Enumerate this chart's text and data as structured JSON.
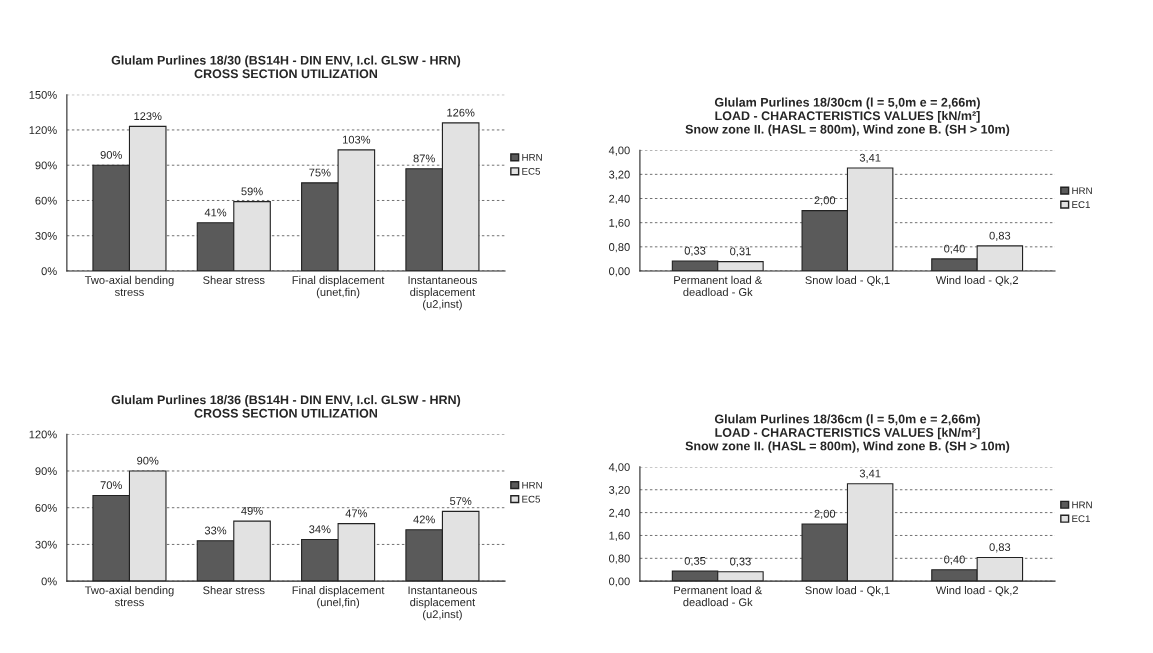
{
  "chart_data": [
    {
      "type": "bar",
      "title": "Glulam Purlines 18/30 (BS14H - DIN ENV, I.cl. GLSW - HRN)\nCROSS SECTION UTILIZATION",
      "categories": [
        "Two-axial bending\nstress",
        "Shear stress",
        "Final displacement\n(unet,fin)",
        "Instantaneous\ndisplacement\n(u2,inst)"
      ],
      "series": [
        {
          "name": "HRN",
          "color": "#5a5a5a",
          "values": [
            90,
            41,
            75,
            87
          ],
          "value_labels": [
            "90%",
            "41%",
            "75%",
            "87%"
          ]
        },
        {
          "name": "EC5",
          "color": "#e2e2e2",
          "values": [
            123,
            59,
            103,
            126
          ],
          "value_labels": [
            "123%",
            "59%",
            "103%",
            "126%"
          ]
        }
      ],
      "ylim": [
        0,
        150
      ],
      "yticks": [
        {
          "value": 0,
          "label": "0%"
        },
        {
          "value": 30,
          "label": "30%"
        },
        {
          "value": 60,
          "label": "60%"
        },
        {
          "value": 90,
          "label": "90%"
        },
        {
          "value": 120,
          "label": "120%"
        },
        {
          "value": 150,
          "label": "150%"
        }
      ],
      "grid": "y",
      "legend": "right"
    },
    {
      "type": "bar",
      "title": "Glulam Purlines 18/30cm (l = 5,0m e = 2,66m)\nLOAD - CHARACTERISTICS VALUES [kN/m²]\nSnow zone II. (HASL = 800m), Wind zone B. (SH > 10m)",
      "categories": [
        "Permanent load &\ndeadload - Gk",
        "Snow load - Qk,1",
        "Wind load - Qk,2"
      ],
      "series": [
        {
          "name": "HRN",
          "color": "#5a5a5a",
          "values": [
            0.33,
            2.0,
            0.4
          ],
          "value_labels": [
            "0,33",
            "2,00",
            "0,40"
          ]
        },
        {
          "name": "EC1",
          "color": "#e2e2e2",
          "values": [
            0.31,
            3.41,
            0.83
          ],
          "value_labels": [
            "0,31",
            "3,41",
            "0,83"
          ]
        }
      ],
      "ylim": [
        0,
        4
      ],
      "yticks": [
        {
          "value": 0,
          "label": "0,00"
        },
        {
          "value": 0.8,
          "label": "0,80"
        },
        {
          "value": 1.6,
          "label": "1,60"
        },
        {
          "value": 2.4,
          "label": "2,40"
        },
        {
          "value": 3.2,
          "label": "3,20"
        },
        {
          "value": 4,
          "label": "4,00"
        }
      ],
      "grid": "y",
      "legend": "right"
    },
    {
      "type": "bar",
      "title": "Glulam Purlines 18/36 (BS14H - DIN ENV, I.cl. GLSW - HRN)\nCROSS SECTION UTILIZATION",
      "categories": [
        "Two-axial bending\nstress",
        "Shear stress",
        "Final displacement\n(unel,fin)",
        "Instantaneous\ndisplacement\n(u2,inst)"
      ],
      "series": [
        {
          "name": "HRN",
          "color": "#5a5a5a",
          "values": [
            70,
            33,
            34,
            42
          ],
          "value_labels": [
            "70%",
            "33%",
            "34%",
            "42%"
          ]
        },
        {
          "name": "EC5",
          "color": "#e2e2e2",
          "values": [
            90,
            49,
            47,
            57
          ],
          "value_labels": [
            "90%",
            "49%",
            "47%",
            "57%"
          ]
        }
      ],
      "ylim": [
        0,
        120
      ],
      "yticks": [
        {
          "value": 0,
          "label": "0%"
        },
        {
          "value": 30,
          "label": "30%"
        },
        {
          "value": 60,
          "label": "60%"
        },
        {
          "value": 90,
          "label": "90%"
        },
        {
          "value": 120,
          "label": "120%"
        }
      ],
      "grid": "y",
      "legend": "right"
    },
    {
      "type": "bar",
      "title": "Glulam Purlines 18/36cm (l = 5,0m e = 2,66m)\nLOAD - CHARACTERISTICS VALUES [kN/m²]\nSnow zone II. (HASL = 800m), Wind zone B. (SH > 10m)",
      "categories": [
        "Permanent load &\ndeadload - Gk",
        "Snow load - Qk,1",
        "Wind load - Qk,2"
      ],
      "series": [
        {
          "name": "HRN",
          "color": "#5a5a5a",
          "values": [
            0.35,
            2.0,
            0.4
          ],
          "value_labels": [
            "0,35",
            "2,00",
            "0,40"
          ]
        },
        {
          "name": "EC1",
          "color": "#e2e2e2",
          "values": [
            0.33,
            3.41,
            0.83
          ],
          "value_labels": [
            "0,33",
            "3,41",
            "0,83"
          ]
        }
      ],
      "ylim": [
        0,
        4
      ],
      "yticks": [
        {
          "value": 0,
          "label": "0,00"
        },
        {
          "value": 0.8,
          "label": "0,80"
        },
        {
          "value": 1.6,
          "label": "1,60"
        },
        {
          "value": 2.4,
          "label": "2,40"
        },
        {
          "value": 3.2,
          "label": "3,20"
        },
        {
          "value": 4,
          "label": "4,00"
        }
      ],
      "grid": "y",
      "legend": "right"
    }
  ]
}
